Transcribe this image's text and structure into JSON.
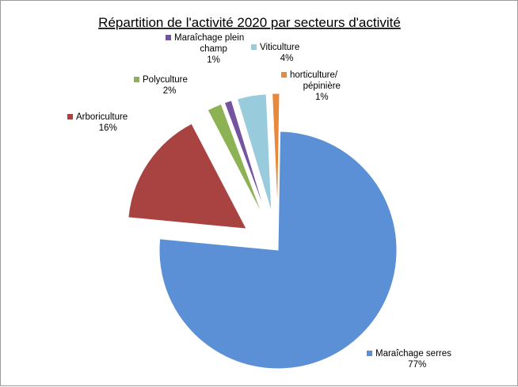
{
  "chart_data": {
    "type": "pie",
    "title": "Répartition de l'activité 2020 par secteurs d'activité",
    "slices": [
      {
        "name": "Maraîchage serres",
        "value": 77,
        "label_lines": [
          "Maraîchage serres"
        ],
        "percent_label": "77%",
        "color": "#5b8fd6",
        "exploded": false
      },
      {
        "name": "Arboriculture",
        "value": 16,
        "label_lines": [
          "Arboriculture"
        ],
        "percent_label": "16%",
        "color": "#a94342",
        "exploded": true
      },
      {
        "name": "Polyculture",
        "value": 2,
        "label_lines": [
          "Polyculture"
        ],
        "percent_label": "2%",
        "color": "#8db254",
        "exploded": true
      },
      {
        "name": "Maraîchage plein champ",
        "value": 1,
        "label_lines": [
          "Maraîchage plein",
          "champ"
        ],
        "percent_label": "1%",
        "color": "#7453a0",
        "exploded": true
      },
      {
        "name": "Viticulture",
        "value": 4,
        "label_lines": [
          "Viticulture"
        ],
        "percent_label": "4%",
        "color": "#98cbdb",
        "exploded": true
      },
      {
        "name": "horticulture/ pépinière",
        "value": 1,
        "label_lines": [
          "horticulture/",
          "pépinière"
        ],
        "percent_label": "1%",
        "color": "#e8883a",
        "exploded": true
      }
    ],
    "legend": "none",
    "data_labels": "category name and percentage"
  }
}
